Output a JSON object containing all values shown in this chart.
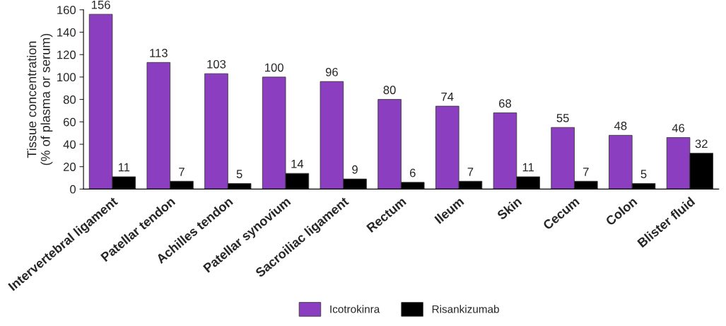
{
  "chart_data": {
    "type": "bar",
    "ylabel": "Tissue concentration\n(% of plasma or serum)",
    "categories": [
      "Intervertebral ligament",
      "Patellar tendon",
      "Achilles tendon",
      "Patellar synovium",
      "Sacroiliac ligament",
      "Rectum",
      "Ileum",
      "Skin",
      "Cecum",
      "Colon",
      "Blister fluid"
    ],
    "series": [
      {
        "name": "Icotrokinra",
        "color": "#8b3fc0",
        "values": [
          156,
          113,
          103,
          100,
          96,
          80,
          74,
          68,
          55,
          48,
          46
        ]
      },
      {
        "name": "Risankizumab",
        "color": "#000000",
        "values": [
          11,
          7,
          5,
          14,
          9,
          6,
          7,
          11,
          7,
          5,
          32
        ]
      }
    ],
    "ylim": [
      0,
      160
    ],
    "yticks": [
      0,
      20,
      40,
      60,
      80,
      100,
      120,
      140,
      160
    ],
    "data_labels": true,
    "grid": false,
    "legend": "bottom"
  }
}
